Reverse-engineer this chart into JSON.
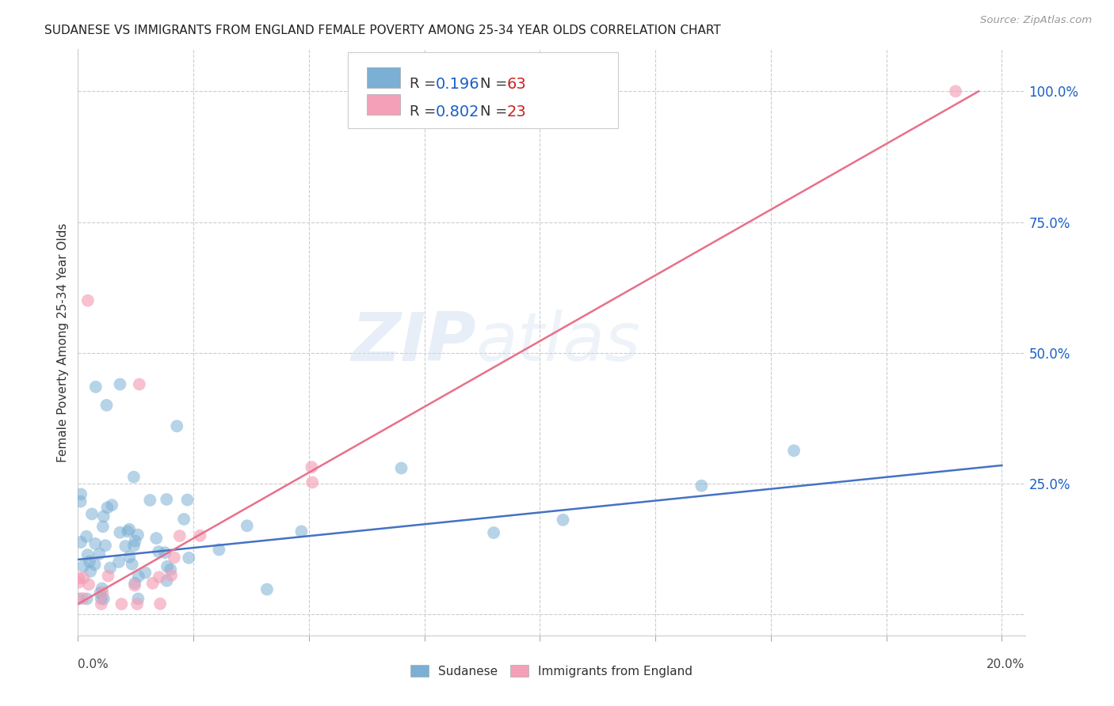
{
  "title": "SUDANESE VS IMMIGRANTS FROM ENGLAND FEMALE POVERTY AMONG 25-34 YEAR OLDS CORRELATION CHART",
  "source": "Source: ZipAtlas.com",
  "ylabel": "Female Poverty Among 25-34 Year Olds",
  "sudanese_color": "#7bafd4",
  "england_color": "#f4a0b8",
  "line_blue": "#4472c4",
  "line_pink": "#e8708a",
  "watermark_zip": "ZIP",
  "watermark_atlas": "atlas",
  "right_yticks": [
    0.0,
    0.25,
    0.5,
    0.75,
    1.0
  ],
  "right_yticklabels": [
    "",
    "25.0%",
    "50.0%",
    "75.0%",
    "100.0%"
  ],
  "blue_line_x": [
    0.0,
    0.2
  ],
  "blue_line_y": [
    0.105,
    0.285
  ],
  "pink_line_x": [
    0.0,
    0.195
  ],
  "pink_line_y": [
    0.02,
    1.0
  ],
  "xlim": [
    0.0,
    0.205
  ],
  "ylim": [
    -0.04,
    1.08
  ],
  "legend_blue_label": "R = ",
  "legend_blue_r": "0.196",
  "legend_blue_n_label": "  N = ",
  "legend_blue_n": "63",
  "legend_pink_label": "R = ",
  "legend_pink_r": "0.802",
  "legend_pink_n_label": "  N = ",
  "legend_pink_n": "23",
  "bottom_label1": "Sudanese",
  "bottom_label2": "Immigrants from England",
  "r_color": "#1a5fc8",
  "n_color": "#cc2222"
}
